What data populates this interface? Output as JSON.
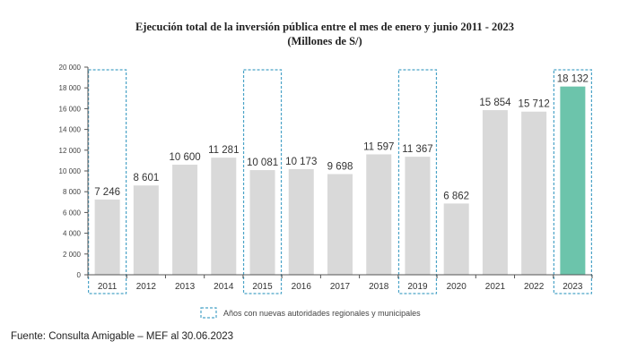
{
  "title_line1": "Ejecución total de la inversión pública entre el mes de enero y junio 2011 - 2023",
  "title_line2": "(Millones de S/)",
  "source": "Fuente: Consulta Amigable – MEF al 30.06.2023",
  "chart_data": {
    "type": "bar",
    "title": "Ejecución total de la inversión pública entre el mes de enero y junio 2011 - 2023",
    "subtitle": "(Millones de S/)",
    "xlabel": "",
    "ylabel": "",
    "ylim": [
      0,
      20000
    ],
    "yticks": [
      0,
      2000,
      4000,
      6000,
      8000,
      10000,
      12000,
      14000,
      16000,
      18000,
      20000
    ],
    "ytick_labels": [
      "0",
      "2 000",
      "4 000",
      "6 000",
      "8 000",
      "10 000",
      "12 000",
      "14 000",
      "16 000",
      "18 000",
      "20 000"
    ],
    "categories": [
      "2011",
      "2012",
      "2013",
      "2014",
      "2015",
      "2016",
      "2017",
      "2018",
      "2019",
      "2020",
      "2021",
      "2022",
      "2023"
    ],
    "values": [
      7246,
      8601,
      10600,
      11281,
      10081,
      10173,
      9698,
      11597,
      11367,
      6862,
      15854,
      15712,
      18132
    ],
    "value_labels": [
      "7 246",
      "8 601",
      "10 600",
      "11 281",
      "10 081",
      "10 173",
      "9 698",
      "11 597",
      "11 367",
      "6 862",
      "15 854",
      "15 712",
      "18 132"
    ],
    "highlighted_years": [
      "2011",
      "2015",
      "2019",
      "2023"
    ],
    "legend": [
      {
        "label": "Años con nuevas autoridades regionales y municipales",
        "style": "dashed-box"
      }
    ],
    "legend_position": "bottom-center",
    "grid": false,
    "colors": {
      "bar": "#d9d9d9",
      "bar_highlight": "#6cc4ab",
      "dashed_box": "#4aa3c7",
      "axis": "#555555"
    }
  }
}
